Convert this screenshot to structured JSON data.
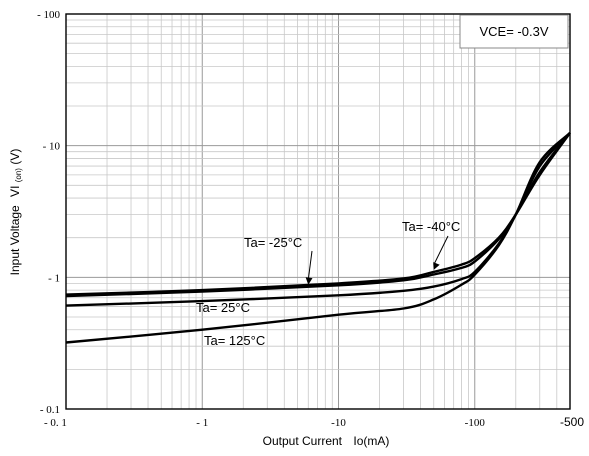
{
  "chart_data": {
    "type": "line",
    "xscale": "log",
    "yscale": "log",
    "xlim": [
      0.1,
      500
    ],
    "ylim": [
      0.1,
      100
    ],
    "grid": true,
    "xlabel": "Output Current",
    "xlabel_symbol": "Io(mA)",
    "ylabel": "Input Voltage",
    "ylabel_symbol": "VI(on)(V)",
    "ylabel_main": "VI",
    "ylabel_sub": "(on)",
    "ylabel_unit": "(V)",
    "x_ticks": [
      {
        "value": 0.1,
        "label": "- 0. 1"
      },
      {
        "value": 1,
        "label": "- 1"
      },
      {
        "value": 10,
        "label": "-10"
      },
      {
        "value": 100,
        "label": "-100"
      },
      {
        "value": 500,
        "label": "-500"
      }
    ],
    "y_ticks": [
      {
        "value": 100,
        "label": "- 100"
      },
      {
        "value": 10,
        "label": "- 10"
      },
      {
        "value": 1,
        "label": "- 1"
      },
      {
        "value": 0.1,
        "label": "- 0.1"
      }
    ],
    "condition_box": "VCE= -0.3V",
    "series": [
      {
        "name": "Ta= -40°C",
        "x": [
          0.1,
          1,
          10,
          30,
          50,
          80,
          100,
          150,
          200,
          300,
          500
        ],
        "y": [
          0.74,
          0.8,
          0.9,
          0.98,
          1.1,
          1.25,
          1.4,
          2.0,
          3.0,
          6.0,
          12.5
        ]
      },
      {
        "name": "Ta= -25°C",
        "x": [
          0.1,
          1,
          10,
          30,
          50,
          80,
          100,
          150,
          200,
          300,
          500
        ],
        "y": [
          0.72,
          0.78,
          0.87,
          0.95,
          1.05,
          1.18,
          1.32,
          1.95,
          3.0,
          6.3,
          12.5
        ]
      },
      {
        "name": "Ta= 25°C",
        "x": [
          0.1,
          1,
          10,
          30,
          50,
          80,
          100,
          150,
          200,
          300,
          500
        ],
        "y": [
          0.61,
          0.66,
          0.73,
          0.79,
          0.85,
          0.97,
          1.1,
          1.8,
          3.0,
          7.0,
          12.5
        ]
      },
      {
        "name": "Ta= 125°C",
        "x": [
          0.1,
          1,
          10,
          30,
          50,
          80,
          100,
          150,
          200,
          300,
          500
        ],
        "y": [
          0.32,
          0.4,
          0.52,
          0.58,
          0.68,
          0.88,
          1.05,
          1.75,
          3.0,
          7.5,
          12.5
        ]
      }
    ],
    "annotations": [
      {
        "text": "Ta= -40°C",
        "series": 0,
        "arrow_to_x": 50
      },
      {
        "text": "Ta= -25°C",
        "series": 1,
        "arrow_to_x": 6
      },
      {
        "text": "Ta= 25°C",
        "series": 2
      },
      {
        "text": "Ta= 125°C",
        "series": 3
      }
    ]
  }
}
